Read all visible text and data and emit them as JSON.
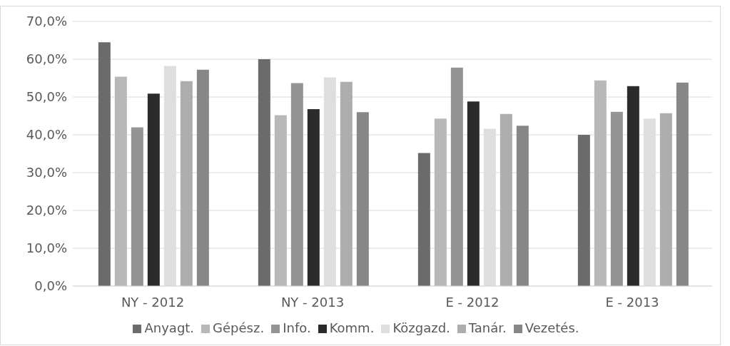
{
  "chart_data": {
    "type": "bar",
    "categories": [
      "NY - 2012",
      "NY - 2013",
      "E - 2012",
      "E - 2013"
    ],
    "series": [
      {
        "name": "Anyagt.",
        "color": "#6b6b6b",
        "values": [
          64.5,
          60.0,
          35.2,
          40.0
        ]
      },
      {
        "name": "Gépész.",
        "color": "#b8b8b8",
        "values": [
          55.4,
          45.2,
          44.3,
          54.4
        ]
      },
      {
        "name": "Info.",
        "color": "#949494",
        "values": [
          42.0,
          53.7,
          57.8,
          46.1
        ]
      },
      {
        "name": "Komm.",
        "color": "#2b2b2b",
        "values": [
          50.9,
          46.8,
          48.8,
          52.9
        ]
      },
      {
        "name": "Közgazd.",
        "color": "#dedede",
        "values": [
          58.2,
          55.2,
          41.6,
          44.3
        ]
      },
      {
        "name": "Tanár.",
        "color": "#adadad",
        "values": [
          54.2,
          54.0,
          45.5,
          45.7
        ]
      },
      {
        "name": "Vezetés.",
        "color": "#878787",
        "values": [
          57.2,
          46.0,
          42.4,
          53.8
        ]
      }
    ],
    "ylim": [
      0,
      70
    ],
    "yticks": [
      {
        "value": 0,
        "label": "0,0%"
      },
      {
        "value": 10,
        "label": "10,0%"
      },
      {
        "value": 20,
        "label": "20,0%"
      },
      {
        "value": 30,
        "label": "30,0%"
      },
      {
        "value": 40,
        "label": "40,0%"
      },
      {
        "value": 50,
        "label": "50,0%"
      },
      {
        "value": 60,
        "label": "60,0%"
      },
      {
        "value": 70,
        "label": "70,0%"
      }
    ],
    "grid": "y",
    "legend": "bottom"
  }
}
